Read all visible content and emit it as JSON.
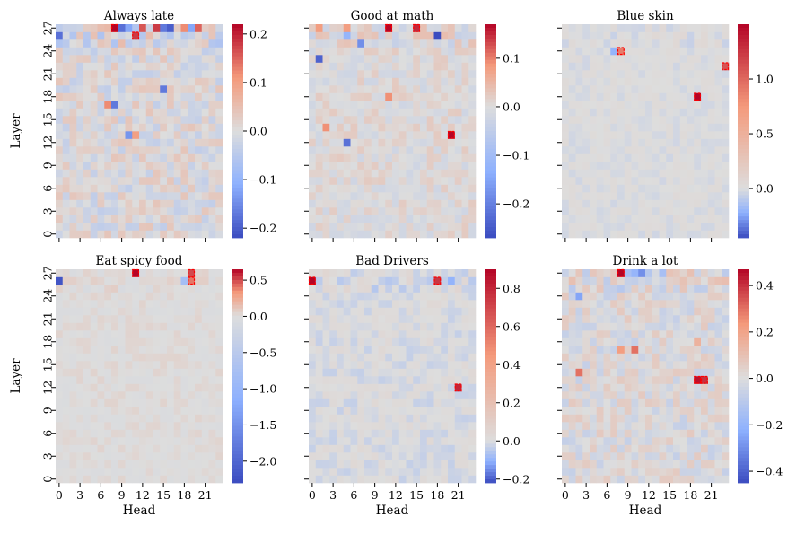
{
  "chart_data": [
    {
      "type": "heatmap",
      "title": "Always late",
      "xlabel": "",
      "ylabel": "Layer",
      "x_ticks": [],
      "y_ticks": [
        "0",
        "3",
        "6",
        "9",
        "12",
        "15",
        "18",
        "21",
        "24",
        "27"
      ],
      "color_range": [
        -0.22,
        0.22
      ],
      "colorbar_ticks": [
        0.2,
        0.1,
        0.0,
        -0.1,
        -0.2
      ],
      "colorbar_labels": [
        "0.2",
        "0.1",
        "0.0",
        "−0.1",
        "−0.2"
      ],
      "noise_scale": 0.04,
      "highlights": [
        {
          "layer": 27,
          "head": 8,
          "value": 0.22
        },
        {
          "layer": 27,
          "head": 9,
          "value": -0.18
        },
        {
          "layer": 27,
          "head": 10,
          "value": -0.12
        },
        {
          "layer": 27,
          "head": 12,
          "value": 0.16
        },
        {
          "layer": 27,
          "head": 14,
          "value": 0.18
        },
        {
          "layer": 27,
          "head": 15,
          "value": -0.17
        },
        {
          "layer": 27,
          "head": 16,
          "value": -0.2
        },
        {
          "layer": 27,
          "head": 18,
          "value": 0.12
        },
        {
          "layer": 27,
          "head": 19,
          "value": -0.12
        },
        {
          "layer": 27,
          "head": 20,
          "value": 0.15
        },
        {
          "layer": 26,
          "head": 0,
          "value": -0.18
        },
        {
          "layer": 26,
          "head": 11,
          "value": 0.18
        },
        {
          "layer": 19,
          "head": 15,
          "value": -0.17
        },
        {
          "layer": 17,
          "head": 8,
          "value": -0.17
        },
        {
          "layer": 17,
          "head": 7,
          "value": 0.12
        },
        {
          "layer": 13,
          "head": 10,
          "value": -0.14
        },
        {
          "layer": 13,
          "head": 11,
          "value": 0.1
        }
      ],
      "boxed": [
        {
          "layer": 27,
          "head": 8
        },
        {
          "layer": 26,
          "head": 11
        }
      ]
    },
    {
      "type": "heatmap",
      "title": "Good at math",
      "xlabel": "",
      "ylabel": "",
      "x_ticks": [],
      "y_ticks": [],
      "color_range": [
        -0.27,
        0.17
      ],
      "colorbar_ticks": [
        0.1,
        0.0,
        -0.1,
        -0.2
      ],
      "colorbar_labels": [
        "0.1",
        "0.0",
        "−0.1",
        "−0.2"
      ],
      "noise_scale": 0.025,
      "highlights": [
        {
          "layer": 27,
          "head": 11,
          "value": 0.17
        },
        {
          "layer": 27,
          "head": 15,
          "value": 0.15
        },
        {
          "layer": 27,
          "head": 1,
          "value": 0.08
        },
        {
          "layer": 27,
          "head": 5,
          "value": 0.08
        },
        {
          "layer": 26,
          "head": 18,
          "value": -0.27
        },
        {
          "layer": 26,
          "head": 5,
          "value": -0.12
        },
        {
          "layer": 25,
          "head": 7,
          "value": -0.18
        },
        {
          "layer": 23,
          "head": 1,
          "value": -0.24
        },
        {
          "layer": 18,
          "head": 11,
          "value": 0.09
        },
        {
          "layer": 13,
          "head": 20,
          "value": 0.17
        },
        {
          "layer": 12,
          "head": 5,
          "value": -0.22
        },
        {
          "layer": 14,
          "head": 2,
          "value": 0.09
        }
      ],
      "boxed": [
        {
          "layer": 27,
          "head": 11
        },
        {
          "layer": 27,
          "head": 15
        },
        {
          "layer": 13,
          "head": 20
        }
      ]
    },
    {
      "type": "heatmap",
      "title": "Blue skin",
      "xlabel": "",
      "ylabel": "",
      "x_ticks": [],
      "y_ticks": [],
      "color_range": [
        -0.45,
        1.5
      ],
      "colorbar_ticks": [
        1.0,
        0.5,
        0.0
      ],
      "colorbar_labels": [
        "1.0",
        "0.5",
        "0.0"
      ],
      "noise_scale": 0.04,
      "highlights": [
        {
          "layer": 18,
          "head": 19,
          "value": 1.5
        },
        {
          "layer": 24,
          "head": 8,
          "value": 0.9
        },
        {
          "layer": 22,
          "head": 23,
          "value": 1.1
        },
        {
          "layer": 24,
          "head": 7,
          "value": -0.2
        }
      ],
      "boxed": [
        {
          "layer": 24,
          "head": 8
        },
        {
          "layer": 22,
          "head": 23
        },
        {
          "layer": 18,
          "head": 19
        }
      ]
    },
    {
      "type": "heatmap",
      "title": "Eat spicy food",
      "xlabel": "Head",
      "ylabel": "Layer",
      "x_ticks": [
        "0",
        "3",
        "6",
        "9",
        "12",
        "15",
        "18",
        "21"
      ],
      "y_ticks": [
        "0",
        "3",
        "6",
        "9",
        "12",
        "15",
        "18",
        "21",
        "24",
        "27"
      ],
      "color_range": [
        -2.3,
        0.65
      ],
      "colorbar_ticks": [
        0.5,
        0.0,
        -0.5,
        -1.0,
        -1.5,
        -2.0
      ],
      "colorbar_labels": [
        "0.5",
        "0.0",
        "−0.5",
        "−1.0",
        "−1.5",
        "−2.0"
      ],
      "noise_scale": 0.05,
      "highlights": [
        {
          "layer": 27,
          "head": 11,
          "value": 0.65
        },
        {
          "layer": 27,
          "head": 19,
          "value": 0.5
        },
        {
          "layer": 26,
          "head": 19,
          "value": 0.4
        },
        {
          "layer": 26,
          "head": 0,
          "value": -2.2
        },
        {
          "layer": 26,
          "head": 18,
          "value": -0.8
        }
      ],
      "boxed": [
        {
          "layer": 27,
          "head": 11
        },
        {
          "layer": 27,
          "head": 19
        },
        {
          "layer": 26,
          "head": 19
        }
      ]
    },
    {
      "type": "heatmap",
      "title": "Bad Drivers",
      "xlabel": "Head",
      "ylabel": "",
      "x_ticks": [
        "0",
        "3",
        "6",
        "9",
        "12",
        "15",
        "18",
        "21"
      ],
      "y_ticks": [],
      "color_range": [
        -0.22,
        0.9
      ],
      "colorbar_ticks": [
        0.8,
        0.6,
        0.4,
        0.2,
        0.0,
        -0.2
      ],
      "colorbar_labels": [
        "0.8",
        "0.6",
        "0.4",
        "0.2",
        "0.0",
        "−0.2"
      ],
      "noise_scale": 0.035,
      "highlights": [
        {
          "layer": 26,
          "head": 0,
          "value": 0.9
        },
        {
          "layer": 26,
          "head": 18,
          "value": 0.75
        },
        {
          "layer": 12,
          "head": 21,
          "value": 0.8
        },
        {
          "layer": 26,
          "head": 20,
          "value": -0.1
        }
      ],
      "boxed": [
        {
          "layer": 26,
          "head": 0
        },
        {
          "layer": 26,
          "head": 18
        },
        {
          "layer": 12,
          "head": 21
        }
      ]
    },
    {
      "type": "heatmap",
      "title": "Drink a lot",
      "xlabel": "Head",
      "ylabel": "",
      "x_ticks": [
        "0",
        "3",
        "6",
        "9",
        "12",
        "15",
        "18",
        "21"
      ],
      "y_ticks": [],
      "color_range": [
        -0.45,
        0.47
      ],
      "colorbar_ticks": [
        0.4,
        0.2,
        0.0,
        -0.2,
        -0.4
      ],
      "colorbar_labels": [
        "0.4",
        "0.2",
        "0.0",
        "−0.2",
        "−0.4"
      ],
      "noise_scale": 0.07,
      "highlights": [
        {
          "layer": 27,
          "head": 8,
          "value": 0.47
        },
        {
          "layer": 27,
          "head": 9,
          "value": -0.15
        },
        {
          "layer": 27,
          "head": 10,
          "value": -0.2
        },
        {
          "layer": 27,
          "head": 11,
          "value": -0.3
        },
        {
          "layer": 27,
          "head": 14,
          "value": -0.15
        },
        {
          "layer": 24,
          "head": 2,
          "value": -0.25
        },
        {
          "layer": 17,
          "head": 8,
          "value": 0.22
        },
        {
          "layer": 17,
          "head": 10,
          "value": 0.3
        },
        {
          "layer": 18,
          "head": 19,
          "value": 0.15
        },
        {
          "layer": 14,
          "head": 2,
          "value": 0.3
        },
        {
          "layer": 13,
          "head": 19,
          "value": 0.45
        },
        {
          "layer": 13,
          "head": 20,
          "value": 0.4
        }
      ],
      "boxed": [
        {
          "layer": 27,
          "head": 8
        },
        {
          "layer": 13,
          "head": 19
        },
        {
          "layer": 13,
          "head": 20
        }
      ]
    }
  ]
}
